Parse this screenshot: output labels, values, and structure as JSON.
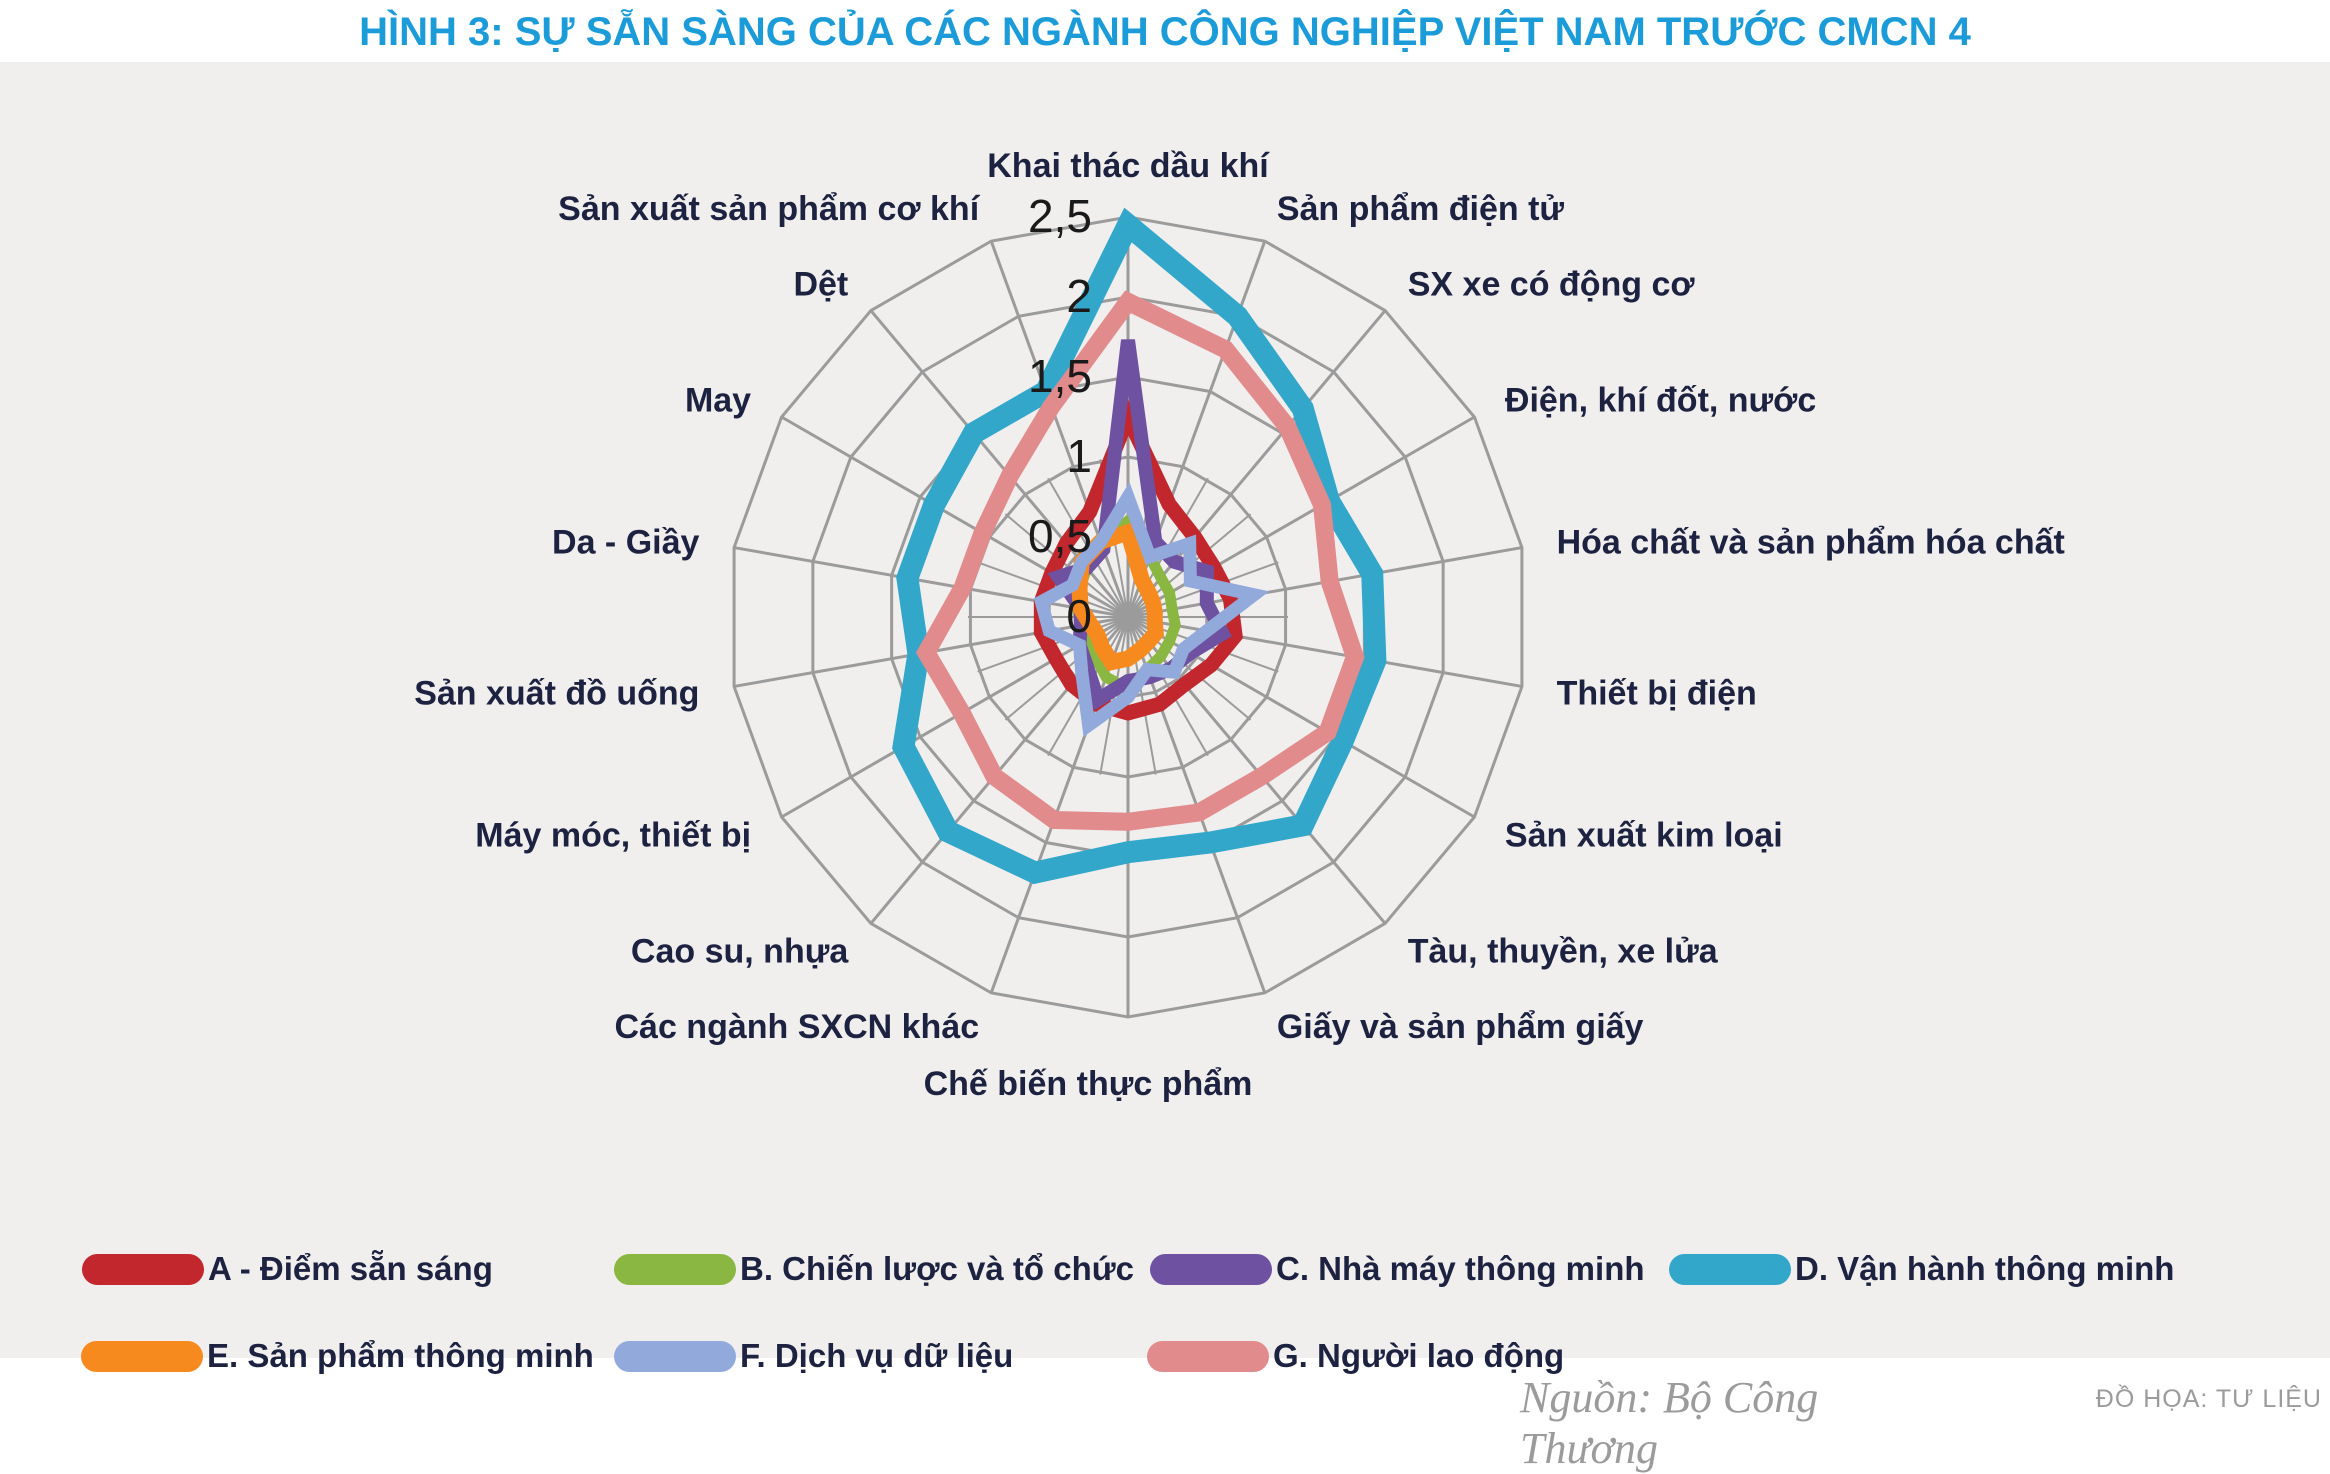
{
  "title": "HÌNH 3: SỰ SẴN SÀNG CỦA CÁC NGÀNH CÔNG NGHIỆP VIỆT NAM TRƯỚC CMCN 4",
  "chart_data": {
    "type": "radar",
    "max": 2.5,
    "ring_step": 0.5,
    "tick_labels": [
      "0",
      "0,5",
      "1",
      "1,5",
      "2",
      "2,5"
    ],
    "grid_color": "#9b9b9b",
    "panel_color": "#f0efee",
    "categories": [
      "Khai thác dầu khí",
      "Sản phẩm điện tử",
      "SX xe có động cơ",
      "Điện, khí đốt, nước",
      "Hóa chất và sản phẩm hóa chất",
      "Thiết bị điện",
      "Sản xuất kim loại",
      "Tàu, thuyền, xe lửa",
      "Giấy và sản phẩm giấy",
      "Chế biến thực phẩm",
      "Các ngành SXCN khác",
      "Cao su, nhựa",
      "Máy móc, thiết bị",
      "Sản xuất đồ uống",
      "Da - Giầy",
      "May",
      "Dệt",
      "Sản xuất sản phẩm cơ khí"
    ],
    "series": [
      {
        "key": "A",
        "name": "A - Điểm sẵn sáng",
        "color": "#c1272d",
        "width": 15,
        "values": [
          1.25,
          0.75,
          0.65,
          0.62,
          0.65,
          0.68,
          0.6,
          0.55,
          0.58,
          0.6,
          0.58,
          0.55,
          0.52,
          0.55,
          0.55,
          0.55,
          0.6,
          0.7
        ]
      },
      {
        "key": "B",
        "name": "B. Chiến lược và tổ chức",
        "color": "#8ab742",
        "width": 11,
        "values": [
          0.6,
          0.4,
          0.32,
          0.3,
          0.28,
          0.3,
          0.3,
          0.32,
          0.35,
          0.45,
          0.4,
          0.32,
          0.3,
          0.3,
          0.32,
          0.35,
          0.4,
          0.5
        ]
      },
      {
        "key": "C",
        "name": "C. Nhà máy thông minh",
        "color": "#6f51a1",
        "width": 14,
        "values": [
          1.73,
          0.5,
          0.45,
          0.57,
          0.5,
          0.6,
          0.45,
          0.42,
          0.4,
          0.4,
          0.55,
          0.4,
          0.35,
          0.3,
          0.3,
          0.5,
          0.4,
          0.45
        ]
      },
      {
        "key": "D",
        "name": "D. Vận hành thông minh",
        "color": "#33a7ca",
        "width": 22,
        "values": [
          2.45,
          2.0,
          1.7,
          1.45,
          1.55,
          1.57,
          1.55,
          1.7,
          1.5,
          1.47,
          1.7,
          1.75,
          1.62,
          1.33,
          1.4,
          1.4,
          1.5,
          1.5
        ]
      },
      {
        "key": "E",
        "name": "E. Sản phẩm thông minh",
        "color": "#f68a1e",
        "width": 16,
        "values": [
          0.53,
          0.25,
          0.2,
          0.18,
          0.17,
          0.17,
          0.2,
          0.2,
          0.22,
          0.26,
          0.3,
          0.25,
          0.22,
          0.24,
          0.3,
          0.35,
          0.45,
          0.5
        ]
      },
      {
        "key": "F",
        "name": "F. Dịch vụ dữ liệu",
        "color": "#92a9dc",
        "width": 13,
        "values": [
          0.75,
          0.4,
          0.6,
          0.45,
          0.8,
          0.5,
          0.4,
          0.45,
          0.35,
          0.5,
          0.72,
          0.45,
          0.35,
          0.5,
          0.55,
          0.4,
          0.45,
          0.5
        ]
      },
      {
        "key": "G",
        "name": "G. Người lao động",
        "color": "#e18b8d",
        "width": 18,
        "values": [
          1.97,
          1.78,
          1.55,
          1.4,
          1.28,
          1.44,
          1.44,
          1.3,
          1.3,
          1.28,
          1.35,
          1.3,
          1.2,
          1.28,
          1.05,
          1.05,
          1.15,
          1.4
        ]
      }
    ],
    "legend_rows": [
      [
        0,
        1,
        2,
        3
      ],
      [
        4,
        5,
        6
      ]
    ]
  },
  "footer": {
    "source": "Nguồn: Bộ Công Thương",
    "credit": "ĐỒ HỌA:  TƯ LIỆU"
  }
}
